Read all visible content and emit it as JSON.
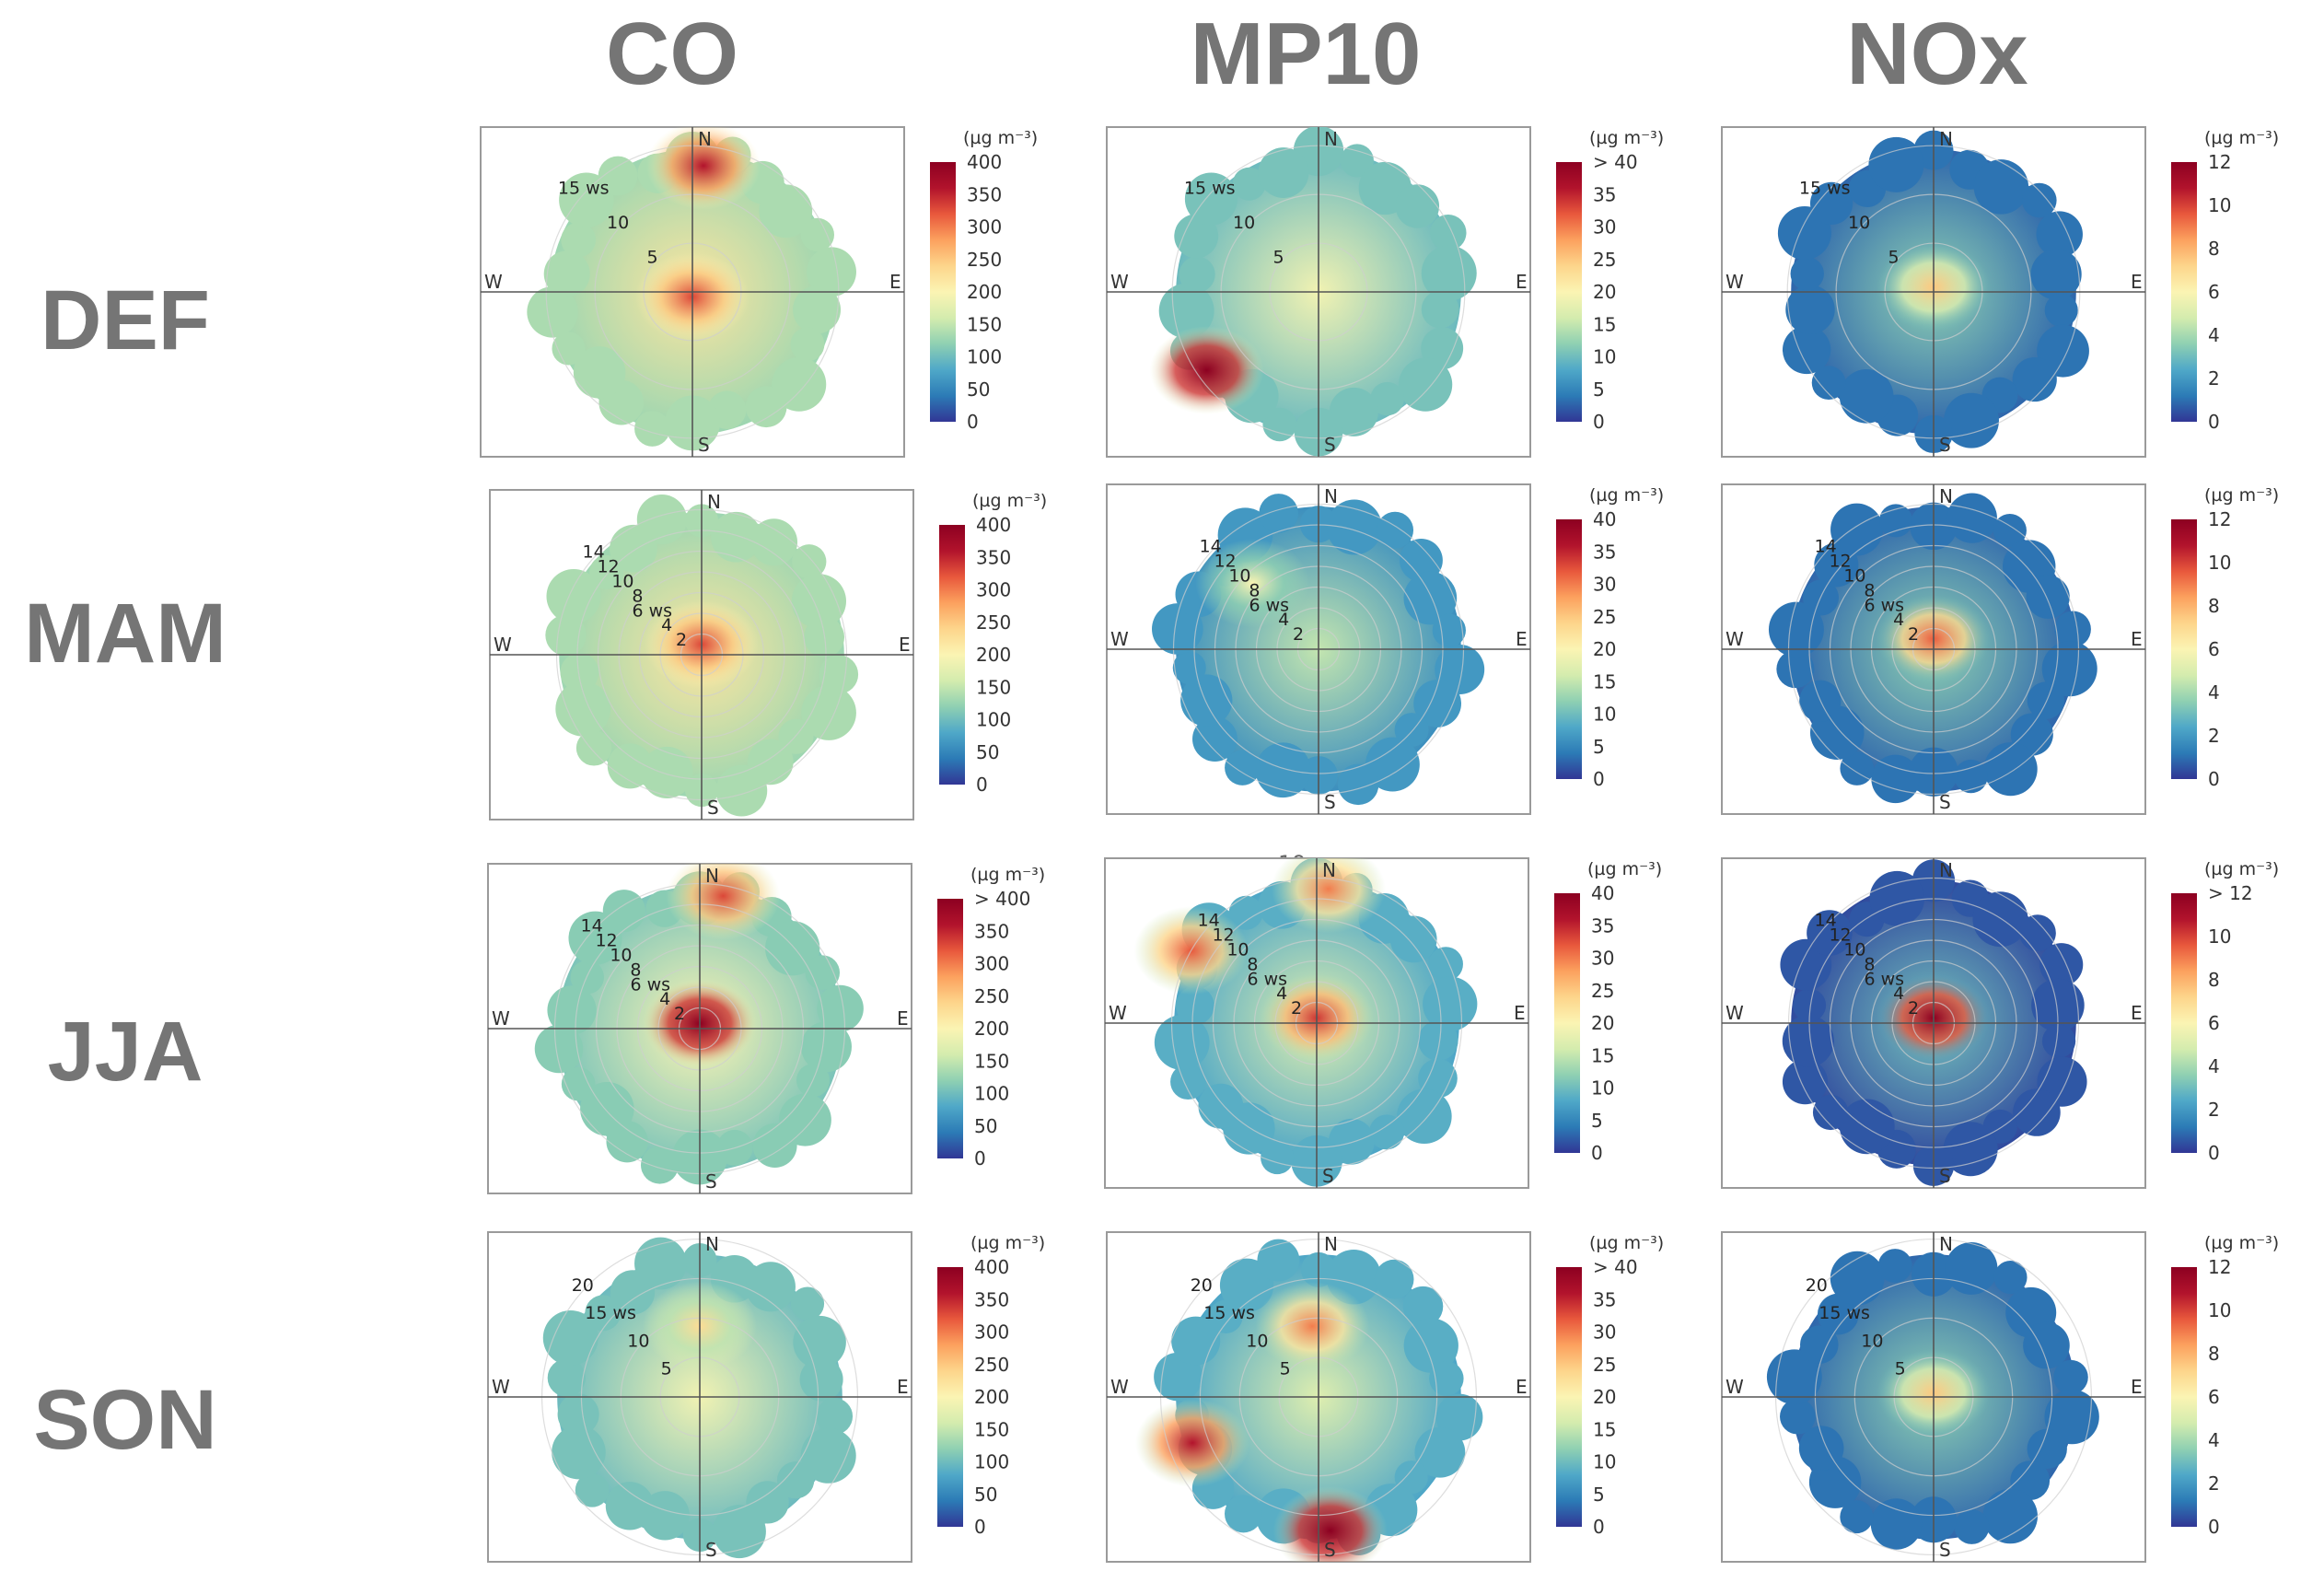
{
  "column_headers": [
    "CO",
    "MP10",
    "NOx"
  ],
  "row_headers": [
    "DEF",
    "MAM",
    "JJA",
    "SON"
  ],
  "stray_text": "19",
  "palette": [
    "#313695",
    "#2c7bb6",
    "#4fa8c8",
    "#8fd0b2",
    "#d4ecae",
    "#fbf4b3",
    "#fdd58b",
    "#fca15e",
    "#e8583c",
    "#b2132c",
    "#8c0021"
  ],
  "directions": {
    "north": "N",
    "south": "S",
    "east": "E",
    "west": "W"
  },
  "chart_data": [
    {
      "type": "polar-plot",
      "pollutant": "CO",
      "season": "DEF",
      "ws_labels": [
        "15 ws",
        "10",
        "5"
      ],
      "ws_values": [
        15,
        10,
        5
      ],
      "ws_max": 17,
      "colorbar": {
        "unit": "(µg m⁻³)",
        "ticks": [
          "400",
          "350",
          "300",
          "250",
          "200",
          "150",
          "100",
          "50",
          "0"
        ],
        "min": 0,
        "max": 400
      },
      "hotspots": [
        {
          "dir": 5,
          "ws": 13,
          "value": 360
        },
        {
          "dir": 180,
          "ws": 0.5,
          "value": 330
        }
      ],
      "base": 200,
      "peak": 380
    },
    {
      "type": "polar-plot",
      "pollutant": "MP10",
      "season": "DEF",
      "ws_labels": [
        "15 ws",
        "10",
        "5"
      ],
      "ws_values": [
        15,
        10,
        5
      ],
      "ws_max": 17,
      "colorbar": {
        "unit": "(µg m⁻³)",
        "ticks": [
          "> 40",
          "35",
          "30",
          "25",
          "20",
          "15",
          "10",
          "5",
          "0"
        ],
        "min": 0,
        "max": 40
      },
      "hotspots": [
        {
          "dir": 235,
          "ws": 14,
          "value": 42
        }
      ],
      "base": 17,
      "peak": 42
    },
    {
      "type": "polar-plot",
      "pollutant": "NOx",
      "season": "DEF",
      "ws_labels": [
        "15 ws",
        "10",
        "5"
      ],
      "ws_values": [
        15,
        10,
        5
      ],
      "ws_max": 17,
      "colorbar": {
        "unit": "(µg m⁻³)",
        "ticks": [
          "12",
          "10",
          "8",
          "6",
          "4",
          "2",
          "0"
        ],
        "min": 0,
        "max": 12
      },
      "hotspots": [
        {
          "dir": 0,
          "ws": 0.5,
          "value": 7.5
        }
      ],
      "base": 3,
      "peak": 7.5
    },
    {
      "type": "polar-plot",
      "pollutant": "CO",
      "season": "MAM",
      "ws_labels": [
        "14",
        "12",
        "10",
        "8",
        "6 ws",
        "4",
        "2"
      ],
      "ws_values": [
        14,
        12,
        10,
        8,
        6,
        4,
        2
      ],
      "ws_max": 16,
      "colorbar": {
        "unit": "(µg m⁻³)",
        "ticks": [
          "400",
          "350",
          "300",
          "250",
          "200",
          "150",
          "100",
          "50",
          "0"
        ],
        "min": 0,
        "max": 400
      },
      "hotspots": [
        {
          "dir": 0,
          "ws": 1,
          "value": 330
        }
      ],
      "base": 200,
      "peak": 340
    },
    {
      "type": "polar-plot",
      "pollutant": "MP10",
      "season": "MAM",
      "ws_labels": [
        "14",
        "12",
        "10",
        "8",
        "6 ws",
        "4",
        "2"
      ],
      "ws_values": [
        14,
        12,
        10,
        8,
        6,
        4,
        2
      ],
      "ws_max": 16,
      "colorbar": {
        "unit": "(µg m⁻³)",
        "ticks": [
          "40",
          "35",
          "30",
          "25",
          "20",
          "15",
          "10",
          "5",
          "0"
        ],
        "min": 0,
        "max": 40
      },
      "hotspots": [
        {
          "dir": 315,
          "ws": 9,
          "value": 20
        }
      ],
      "base": 13,
      "peak": 20
    },
    {
      "type": "polar-plot",
      "pollutant": "NOx",
      "season": "MAM",
      "ws_labels": [
        "14",
        "12",
        "10",
        "8",
        "6 ws",
        "4",
        "2"
      ],
      "ws_values": [
        14,
        12,
        10,
        8,
        6,
        4,
        2
      ],
      "ws_max": 16,
      "colorbar": {
        "unit": "(µg m⁻³)",
        "ticks": [
          "12",
          "10",
          "8",
          "6",
          "4",
          "2",
          "0"
        ],
        "min": 0,
        "max": 12
      },
      "hotspots": [
        {
          "dir": 0,
          "ws": 1,
          "value": 9.5
        }
      ],
      "base": 3,
      "peak": 9.5
    },
    {
      "type": "polar-plot",
      "pollutant": "CO",
      "season": "JJA",
      "ws_labels": [
        "14",
        "12",
        "10",
        "8",
        "6 ws",
        "4",
        "2"
      ],
      "ws_values": [
        14,
        12,
        10,
        8,
        6,
        4,
        2
      ],
      "ws_max": 16,
      "colorbar": {
        "unit": "(µg m⁻³)",
        "ticks": [
          "> 400",
          "350",
          "300",
          "250",
          "200",
          "150",
          "100",
          "50",
          "0"
        ],
        "min": 0,
        "max": 400
      },
      "hotspots": [
        {
          "dir": 10,
          "ws": 13,
          "value": 330
        },
        {
          "dir": 0,
          "ws": 0.5,
          "value": 420
        }
      ],
      "base": 180,
      "peak": 420
    },
    {
      "type": "polar-plot",
      "pollutant": "MP10",
      "season": "JJA",
      "ws_labels": [
        "14",
        "12",
        "10",
        "8",
        "6 ws",
        "4",
        "2"
      ],
      "ws_values": [
        14,
        12,
        10,
        8,
        6,
        4,
        2
      ],
      "ws_max": 16,
      "colorbar": {
        "unit": "(µg m⁻³)",
        "ticks": [
          "40",
          "35",
          "30",
          "25",
          "20",
          "15",
          "10",
          "5",
          "0"
        ],
        "min": 0,
        "max": 40
      },
      "hotspots": [
        {
          "dir": 300,
          "ws": 14,
          "value": 32
        },
        {
          "dir": 5,
          "ws": 13,
          "value": 30
        },
        {
          "dir": 0,
          "ws": 0.5,
          "value": 34
        }
      ],
      "base": 15,
      "peak": 36
    },
    {
      "type": "polar-plot",
      "pollutant": "NOx",
      "season": "JJA",
      "ws_labels": [
        "14",
        "12",
        "10",
        "8",
        "6 ws",
        "4",
        "2"
      ],
      "ws_values": [
        14,
        12,
        10,
        8,
        6,
        4,
        2
      ],
      "ws_max": 16,
      "colorbar": {
        "unit": "(µg m⁻³)",
        "ticks": [
          "> 12",
          "10",
          "8",
          "6",
          "4",
          "2",
          "0"
        ],
        "min": 0,
        "max": 12
      },
      "hotspots": [
        {
          "dir": 0,
          "ws": 0.5,
          "value": 12
        }
      ],
      "base": 2.5,
      "peak": 12.5
    },
    {
      "type": "polar-plot",
      "pollutant": "CO",
      "season": "SON",
      "ws_labels": [
        "20",
        "15 ws",
        "10",
        "5"
      ],
      "ws_values": [
        20,
        15,
        10,
        5
      ],
      "ws_max": 21,
      "colorbar": {
        "unit": "(µg m⁻³)",
        "ticks": [
          "400",
          "350",
          "300",
          "250",
          "200",
          "150",
          "100",
          "50",
          "0"
        ],
        "min": 0,
        "max": 400
      },
      "hotspots": [
        {
          "dir": 0,
          "ws": 9,
          "value": 230
        }
      ],
      "base": 170,
      "peak": 240
    },
    {
      "type": "polar-plot",
      "pollutant": "MP10",
      "season": "SON",
      "ws_labels": [
        "20",
        "15 ws",
        "10",
        "5"
      ],
      "ws_values": [
        20,
        15,
        10,
        5
      ],
      "ws_max": 21,
      "colorbar": {
        "unit": "(µg m⁻³)",
        "ticks": [
          "> 40",
          "35",
          "30",
          "25",
          "20",
          "15",
          "10",
          "5",
          "0"
        ],
        "min": 0,
        "max": 40
      },
      "hotspots": [
        {
          "dir": 175,
          "ws": 17,
          "value": 42
        },
        {
          "dir": 250,
          "ws": 17,
          "value": 36
        },
        {
          "dir": 355,
          "ws": 9,
          "value": 30
        }
      ],
      "base": 15,
      "peak": 42
    },
    {
      "type": "polar-plot",
      "pollutant": "NOx",
      "season": "SON",
      "ws_labels": [
        "20",
        "15 ws",
        "10",
        "5"
      ],
      "ws_values": [
        20,
        15,
        10,
        5
      ],
      "ws_max": 21,
      "colorbar": {
        "unit": "(µg m⁻³)",
        "ticks": [
          "12",
          "10",
          "8",
          "6",
          "4",
          "2",
          "0"
        ],
        "min": 0,
        "max": 12
      },
      "hotspots": [
        {
          "dir": 0,
          "ws": 0.5,
          "value": 7.5
        }
      ],
      "base": 3,
      "peak": 7.5
    }
  ]
}
